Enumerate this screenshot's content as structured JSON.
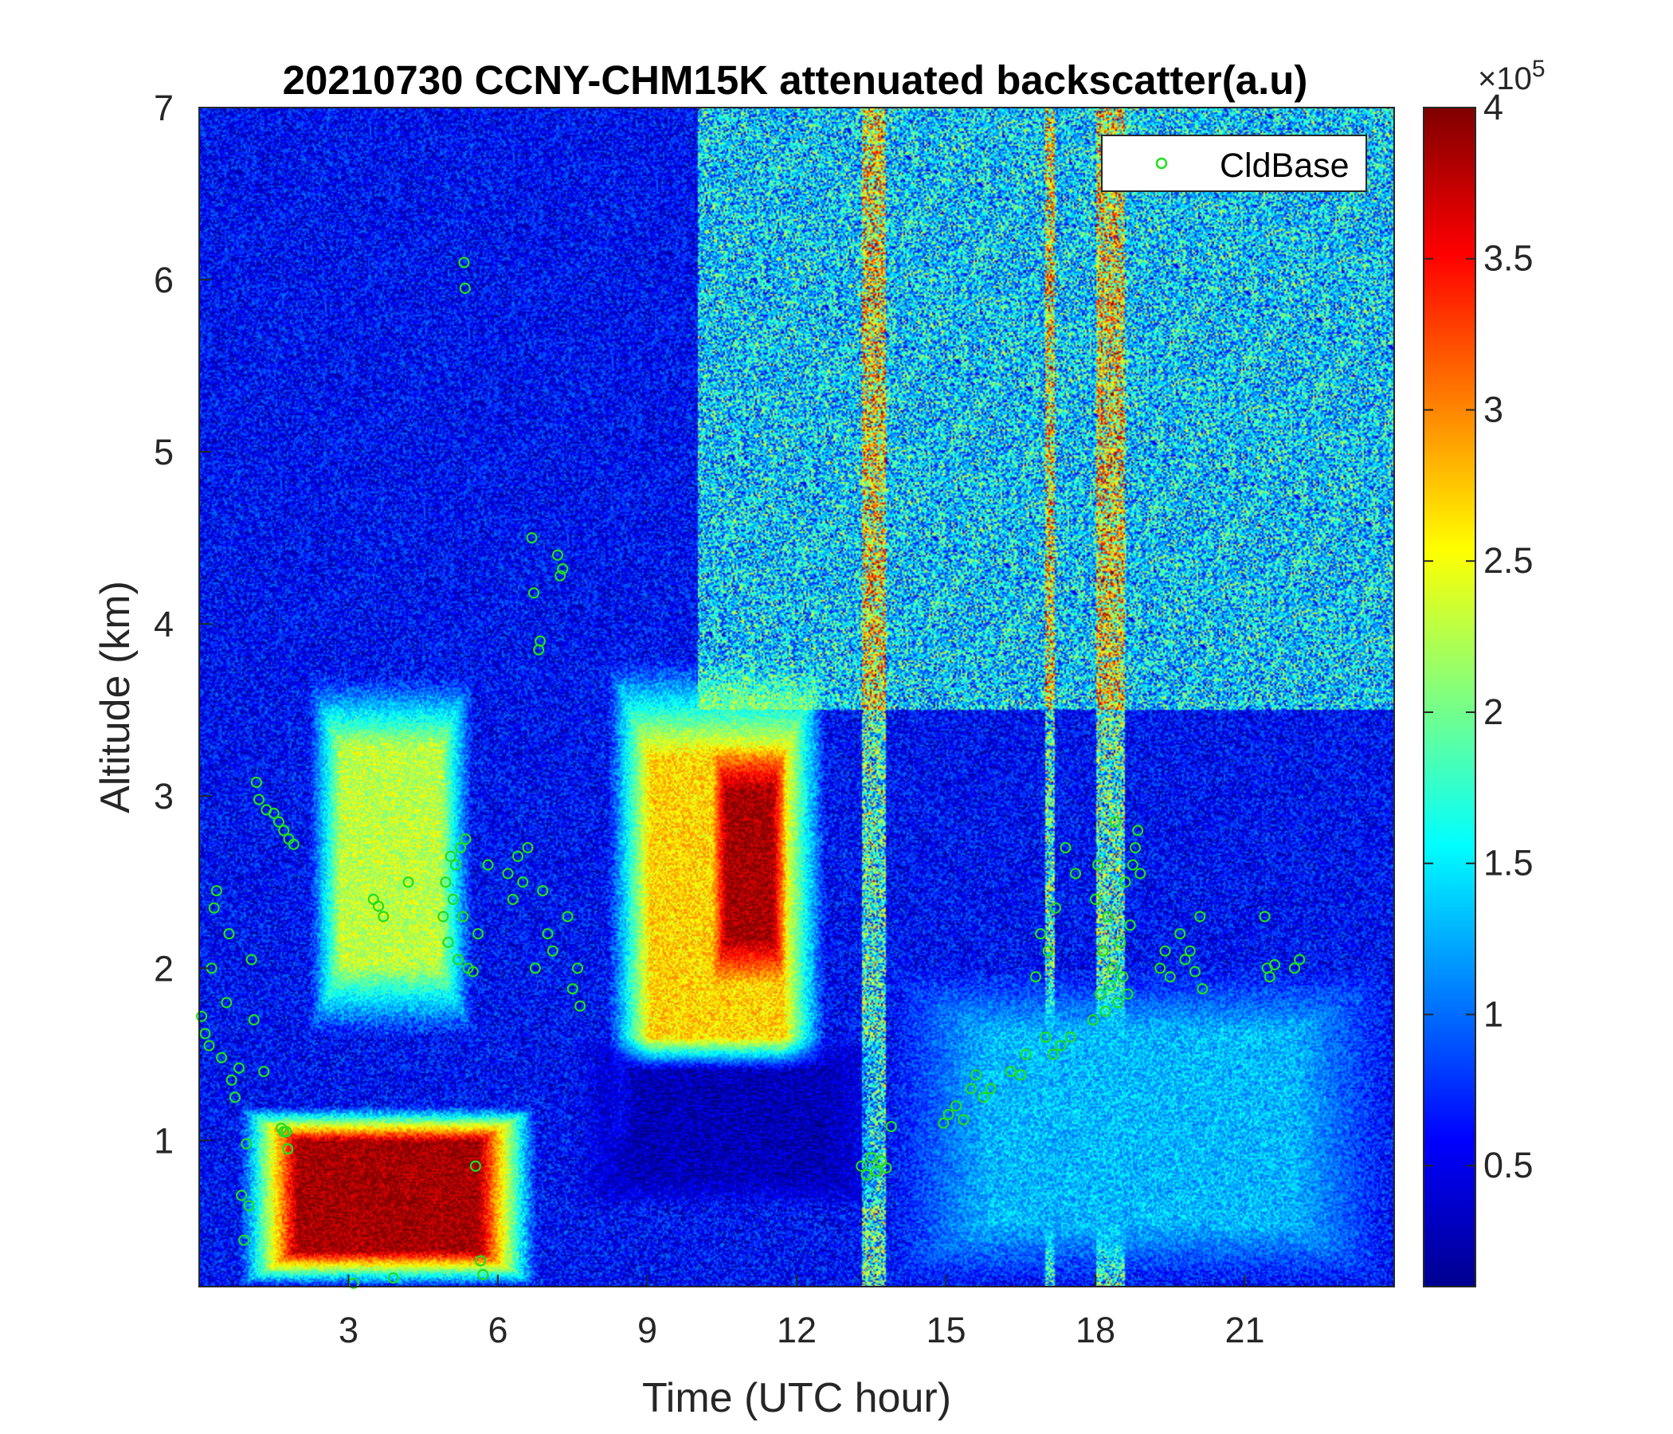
{
  "chart_data": {
    "type": "heatmap",
    "title": "20210730 CCNY-CHM15K attenuated backscatter(a.u)",
    "xlabel": "Time (UTC hour)",
    "ylabel": "Altitude (km)",
    "xlim": [
      0,
      24
    ],
    "ylim": [
      0.15,
      7
    ],
    "xticks": [
      3,
      6,
      9,
      12,
      15,
      18,
      21
    ],
    "yticks": [
      1,
      2,
      3,
      4,
      5,
      6,
      7
    ],
    "colormap": "jet",
    "colorbar": {
      "range": [
        0.1,
        4
      ],
      "ticks": [
        0.5,
        1,
        1.5,
        2,
        2.5,
        3,
        3.5,
        4
      ],
      "tick_labels": [
        "0.5",
        "1",
        "1.5",
        "2",
        "2.5",
        "3",
        "3.5",
        "4"
      ],
      "exponent_prefix": "×10",
      "exponent": "5"
    },
    "legend": {
      "entries": [
        "CldBase"
      ],
      "placement": "top-right",
      "marker": "open-circle",
      "color": "#22dd22"
    },
    "background_level": 0.6,
    "features": [
      {
        "name": "aerosol plume",
        "t": [
          2.2,
          5.5
        ],
        "z": [
          1.6,
          3.7
        ],
        "value": 2.3
      },
      {
        "name": "aerosol plume",
        "t": [
          8.2,
          12.6
        ],
        "z": [
          0.9,
          3.8
        ],
        "value": 2.7
      },
      {
        "name": "thick cloud layer",
        "t": [
          10.3,
          11.8
        ],
        "z": [
          1.9,
          3.3
        ],
        "value": 3.9
      },
      {
        "name": "surface layer",
        "t": [
          0.8,
          6.8
        ],
        "z": [
          0.15,
          1.2
        ],
        "value": 3.9
      },
      {
        "name": "low clear layer",
        "t": [
          7.5,
          13.8
        ],
        "z": [
          0.6,
          1.6
        ],
        "value": 0.3
      },
      {
        "name": "boundary layer",
        "t": [
          13.8,
          24
        ],
        "z": [
          0.15,
          2.0
        ],
        "value": 1.3
      }
    ],
    "cloud_base": [
      {
        "x": 0.05,
        "y": 1.72
      },
      {
        "x": 0.12,
        "y": 1.62
      },
      {
        "x": 0.2,
        "y": 1.55
      },
      {
        "x": 0.25,
        "y": 2.0
      },
      {
        "x": 0.3,
        "y": 2.35
      },
      {
        "x": 0.35,
        "y": 2.45
      },
      {
        "x": 0.45,
        "y": 1.48
      },
      {
        "x": 0.55,
        "y": 1.8
      },
      {
        "x": 0.6,
        "y": 2.2
      },
      {
        "x": 0.65,
        "y": 1.35
      },
      {
        "x": 0.72,
        "y": 1.25
      },
      {
        "x": 0.8,
        "y": 1.42
      },
      {
        "x": 0.85,
        "y": 0.68
      },
      {
        "x": 0.9,
        "y": 0.42
      },
      {
        "x": 0.95,
        "y": 0.98
      },
      {
        "x": 1.0,
        "y": 0.62
      },
      {
        "x": 1.05,
        "y": 2.05
      },
      {
        "x": 1.1,
        "y": 1.7
      },
      {
        "x": 1.15,
        "y": 3.08
      },
      {
        "x": 1.2,
        "y": 2.98
      },
      {
        "x": 1.3,
        "y": 1.4
      },
      {
        "x": 1.35,
        "y": 2.92
      },
      {
        "x": 1.5,
        "y": 2.9
      },
      {
        "x": 1.6,
        "y": 2.85
      },
      {
        "x": 1.7,
        "y": 2.8
      },
      {
        "x": 1.8,
        "y": 2.75
      },
      {
        "x": 1.9,
        "y": 2.72
      },
      {
        "x": 1.7,
        "y": 1.05
      },
      {
        "x": 1.65,
        "y": 1.07
      },
      {
        "x": 1.75,
        "y": 1.05
      },
      {
        "x": 1.78,
        "y": 0.95
      },
      {
        "x": 3.1,
        "y": 0.17
      },
      {
        "x": 3.5,
        "y": 2.4
      },
      {
        "x": 3.6,
        "y": 2.36
      },
      {
        "x": 3.7,
        "y": 2.3
      },
      {
        "x": 3.9,
        "y": 0.2
      },
      {
        "x": 4.2,
        "y": 2.5
      },
      {
        "x": 4.9,
        "y": 2.3
      },
      {
        "x": 4.95,
        "y": 2.5
      },
      {
        "x": 5.0,
        "y": 2.15
      },
      {
        "x": 5.05,
        "y": 2.65
      },
      {
        "x": 5.1,
        "y": 2.4
      },
      {
        "x": 5.15,
        "y": 2.6
      },
      {
        "x": 5.2,
        "y": 2.05
      },
      {
        "x": 5.25,
        "y": 2.7
      },
      {
        "x": 5.3,
        "y": 2.3
      },
      {
        "x": 5.35,
        "y": 2.75
      },
      {
        "x": 5.32,
        "y": 6.1
      },
      {
        "x": 5.34,
        "y": 5.95
      },
      {
        "x": 5.4,
        "y": 2.0
      },
      {
        "x": 5.5,
        "y": 1.98
      },
      {
        "x": 5.55,
        "y": 0.85
      },
      {
        "x": 5.6,
        "y": 2.2
      },
      {
        "x": 5.65,
        "y": 0.3
      },
      {
        "x": 5.7,
        "y": 0.22
      },
      {
        "x": 5.8,
        "y": 2.6
      },
      {
        "x": 6.2,
        "y": 2.55
      },
      {
        "x": 6.3,
        "y": 2.4
      },
      {
        "x": 6.4,
        "y": 2.65
      },
      {
        "x": 6.5,
        "y": 2.5
      },
      {
        "x": 6.6,
        "y": 2.7
      },
      {
        "x": 6.68,
        "y": 4.5
      },
      {
        "x": 6.72,
        "y": 4.18
      },
      {
        "x": 6.75,
        "y": 2.0
      },
      {
        "x": 6.82,
        "y": 3.85
      },
      {
        "x": 6.85,
        "y": 3.9
      },
      {
        "x": 6.9,
        "y": 2.45
      },
      {
        "x": 7.0,
        "y": 2.2
      },
      {
        "x": 7.1,
        "y": 2.1
      },
      {
        "x": 7.2,
        "y": 4.4
      },
      {
        "x": 7.25,
        "y": 4.28
      },
      {
        "x": 7.3,
        "y": 4.32
      },
      {
        "x": 7.4,
        "y": 2.3
      },
      {
        "x": 7.5,
        "y": 1.88
      },
      {
        "x": 7.6,
        "y": 2.0
      },
      {
        "x": 7.65,
        "y": 1.78
      },
      {
        "x": 13.3,
        "y": 0.85
      },
      {
        "x": 13.4,
        "y": 0.8
      },
      {
        "x": 13.5,
        "y": 0.9
      },
      {
        "x": 13.6,
        "y": 0.82
      },
      {
        "x": 13.7,
        "y": 0.88
      },
      {
        "x": 13.8,
        "y": 0.84
      },
      {
        "x": 13.9,
        "y": 1.08
      },
      {
        "x": 14.95,
        "y": 1.1
      },
      {
        "x": 15.05,
        "y": 1.15
      },
      {
        "x": 15.2,
        "y": 1.2
      },
      {
        "x": 15.35,
        "y": 1.12
      },
      {
        "x": 15.5,
        "y": 1.3
      },
      {
        "x": 15.6,
        "y": 1.38
      },
      {
        "x": 15.75,
        "y": 1.25
      },
      {
        "x": 15.9,
        "y": 1.3
      },
      {
        "x": 16.3,
        "y": 1.4
      },
      {
        "x": 16.5,
        "y": 1.38
      },
      {
        "x": 16.6,
        "y": 1.5
      },
      {
        "x": 16.8,
        "y": 1.95
      },
      {
        "x": 16.9,
        "y": 2.2
      },
      {
        "x": 17.0,
        "y": 1.6
      },
      {
        "x": 17.05,
        "y": 2.1
      },
      {
        "x": 17.15,
        "y": 1.5
      },
      {
        "x": 17.2,
        "y": 2.35
      },
      {
        "x": 17.3,
        "y": 1.55
      },
      {
        "x": 17.4,
        "y": 2.7
      },
      {
        "x": 17.5,
        "y": 1.6
      },
      {
        "x": 17.6,
        "y": 2.55
      },
      {
        "x": 17.95,
        "y": 1.7
      },
      {
        "x": 18.0,
        "y": 2.4
      },
      {
        "x": 18.05,
        "y": 2.6
      },
      {
        "x": 18.1,
        "y": 1.85
      },
      {
        "x": 18.15,
        "y": 2.1
      },
      {
        "x": 18.2,
        "y": 1.75
      },
      {
        "x": 18.25,
        "y": 2.3
      },
      {
        "x": 18.3,
        "y": 1.9
      },
      {
        "x": 18.35,
        "y": 2.0
      },
      {
        "x": 18.4,
        "y": 2.85
      },
      {
        "x": 18.45,
        "y": 1.8
      },
      {
        "x": 18.5,
        "y": 2.15
      },
      {
        "x": 18.55,
        "y": 1.95
      },
      {
        "x": 18.6,
        "y": 2.5
      },
      {
        "x": 18.65,
        "y": 1.85
      },
      {
        "x": 18.7,
        "y": 2.25
      },
      {
        "x": 18.75,
        "y": 2.6
      },
      {
        "x": 18.8,
        "y": 2.7
      },
      {
        "x": 18.85,
        "y": 2.8
      },
      {
        "x": 18.9,
        "y": 2.55
      },
      {
        "x": 19.3,
        "y": 2.0
      },
      {
        "x": 19.4,
        "y": 2.1
      },
      {
        "x": 19.5,
        "y": 1.95
      },
      {
        "x": 19.7,
        "y": 2.2
      },
      {
        "x": 19.8,
        "y": 2.05
      },
      {
        "x": 19.9,
        "y": 2.1
      },
      {
        "x": 20.0,
        "y": 1.98
      },
      {
        "x": 20.1,
        "y": 2.3
      },
      {
        "x": 20.15,
        "y": 1.88
      },
      {
        "x": 21.4,
        "y": 2.3
      },
      {
        "x": 21.45,
        "y": 2.0
      },
      {
        "x": 21.5,
        "y": 1.95
      },
      {
        "x": 21.6,
        "y": 2.02
      },
      {
        "x": 22.0,
        "y": 2.0
      },
      {
        "x": 22.1,
        "y": 2.05
      }
    ]
  }
}
